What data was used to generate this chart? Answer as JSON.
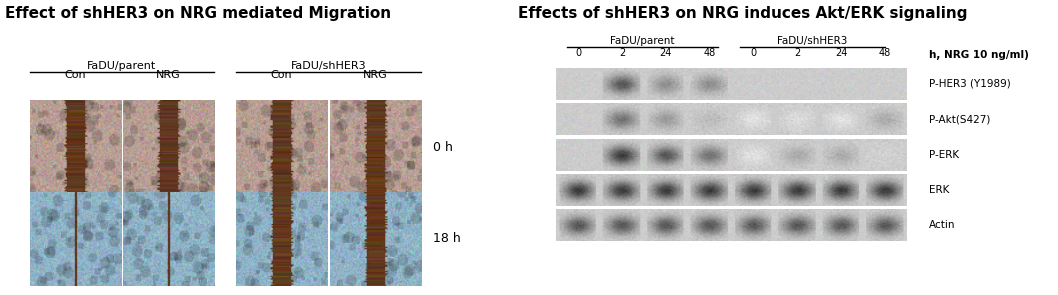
{
  "left_title": "Effect of shHER3 on NRG mediated Migration",
  "right_title": "Effects of shHER3 on NRG induces Akt/ERK signaling",
  "left_group1_label": "FaDU/parent",
  "left_group2_label": "FaDU/shHER3",
  "left_col_labels": [
    "Con",
    "NRG",
    "Con",
    "NRG"
  ],
  "right_group1_label": "FaDU/parent",
  "right_group2_label": "FaDU/shHER3",
  "right_time_labels": [
    "0",
    "2",
    "24",
    "48",
    "0",
    "2",
    "24",
    "48"
  ],
  "right_row_labels": [
    "h, NRG 10 ng/ml)",
    "P-HER3 (Y1989)",
    "P-Akt(S427)",
    "P-ERK",
    "ERK",
    "Actin"
  ],
  "bg_color": "#ffffff",
  "title_fontsize": 11,
  "label_fontsize": 8.5
}
